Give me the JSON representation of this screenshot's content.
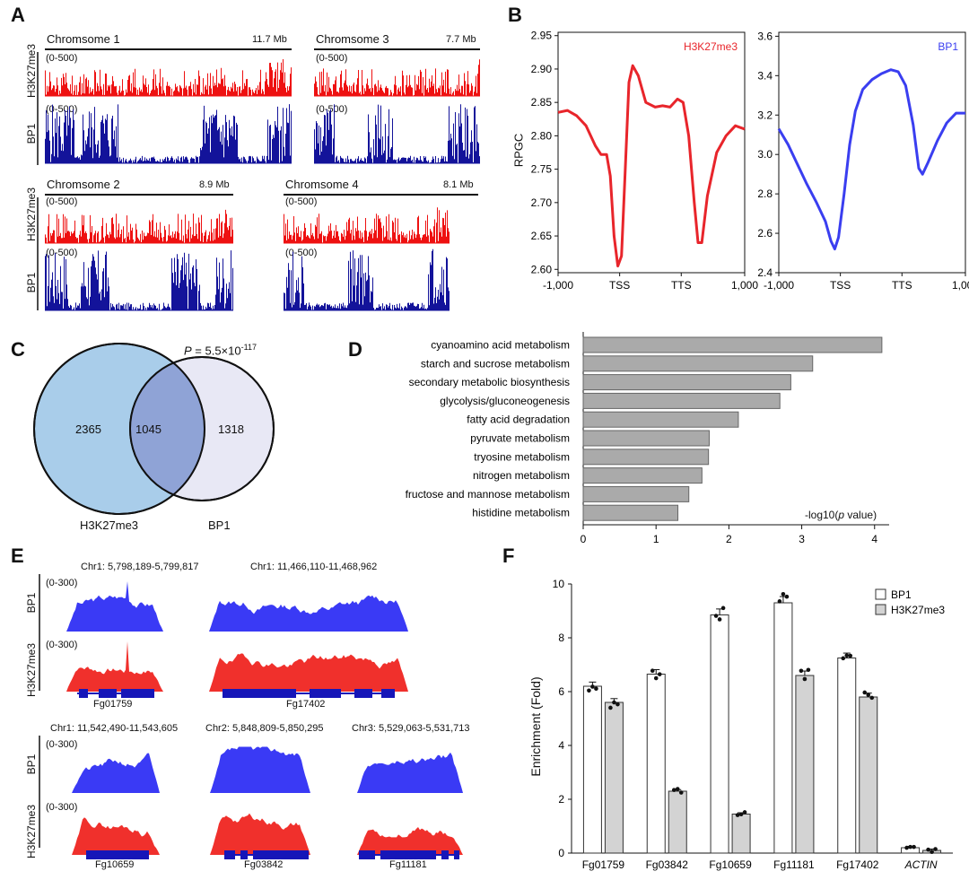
{
  "panel_labels": {
    "a": "A",
    "b": "B",
    "c": "C",
    "d": "D",
    "e": "E",
    "f": "F"
  },
  "panel_a": {
    "row_labels": {
      "h3k27me3": "H3K27me3",
      "bp1": "BP1"
    },
    "range_label": "(0-500)",
    "chromosomes": [
      {
        "name": "Chromsome 1",
        "size": "11.7 Mb"
      },
      {
        "name": "Chromsome 3",
        "size": "7.7 Mb"
      },
      {
        "name": "Chromsome 2",
        "size": "8.9 Mb"
      },
      {
        "name": "Chromsome 4",
        "size": "8.1 Mb"
      }
    ]
  },
  "panel_b": {
    "ylabel": "RPGC",
    "left": {
      "series": "H3K27me3",
      "color": "#e8252b",
      "yticks": [
        "2.95",
        "2.90",
        "2.85",
        "2.80",
        "2.75",
        "2.70",
        "2.65",
        "2.60"
      ]
    },
    "right": {
      "series": "BP1",
      "color": "#3a3ef0",
      "yticks": [
        "3.6",
        "3.4",
        "3.2",
        "3.0",
        "2.8",
        "2.6",
        "2.4"
      ]
    },
    "xticks": [
      "-1,000",
      "TSS",
      "TTS",
      "1,000"
    ]
  },
  "panel_c": {
    "p_value_prefix": "P",
    "p_value_rest": " = 5.5×10",
    "p_value_exp": "-117",
    "left_only": "2365",
    "overlap": "1045",
    "right_only": "1318",
    "left_label": "H3K27me3",
    "right_label": "BP1",
    "left_color": "#a9cdea",
    "right_color": "#d9d8ef"
  },
  "panel_e": {
    "range_label": "(0-300)",
    "row_labels": {
      "bp1": "BP1",
      "h3k27me3": "H3K27me3"
    },
    "loci": [
      {
        "coord": "Chr1: 5,798,189-5,799,817",
        "gene": "Fg01759"
      },
      {
        "coord": "Chr1: 11,466,110-11,468,962",
        "gene": "Fg17402"
      },
      {
        "coord": "Chr1: 11,542,490-11,543,605",
        "gene": "Fg10659"
      },
      {
        "coord": "Chr2: 5,848,809-5,850,295",
        "gene": "Fg03842"
      },
      {
        "coord": "Chr3: 5,529,063-5,531,713",
        "gene": "Fg11181"
      }
    ]
  },
  "chart_data": [
    {
      "type": "bar",
      "panel": "D",
      "orientation": "horizontal",
      "categories": [
        "cyanoamino acid metabolism",
        "starch and sucrose metabolism",
        "secondary metabolic biosynthesis",
        "glycolysis/gluconeogenesis",
        "fatty acid degradation",
        "pyruvate metabolism",
        "tryosine metabolism",
        "nitrogen metabolism",
        "fructose and mannose metabolism",
        "histidine metabolism"
      ],
      "values": [
        4.1,
        3.15,
        2.85,
        2.7,
        2.13,
        1.73,
        1.72,
        1.63,
        1.45,
        1.3
      ],
      "xlabel_prefix": "-log10(",
      "xlabel_italic": "p",
      "xlabel_suffix": " value)",
      "xlim": [
        0,
        4.2
      ],
      "xticks": [
        "0",
        "1",
        "2",
        "3",
        "4"
      ],
      "bar_color": "#aaaaaa"
    },
    {
      "type": "bar",
      "panel": "F",
      "categories": [
        "Fg01759",
        "Fg03842",
        "Fg10659",
        "Fg11181",
        "Fg17402",
        "ACTIN"
      ],
      "series": [
        {
          "name": "BP1",
          "values": [
            6.2,
            6.65,
            8.85,
            9.3,
            7.25,
            0.2
          ],
          "color": "#ffffff"
        },
        {
          "name": "H3K27me3",
          "values": [
            5.6,
            2.3,
            1.45,
            6.6,
            5.8,
            0.1
          ],
          "color": "#d3d3d3"
        }
      ],
      "ylabel": "Enrichment (Fold)",
      "ylim": [
        0,
        10
      ],
      "yticks": [
        "0",
        "2",
        "4",
        "6",
        "8",
        "10"
      ]
    }
  ]
}
